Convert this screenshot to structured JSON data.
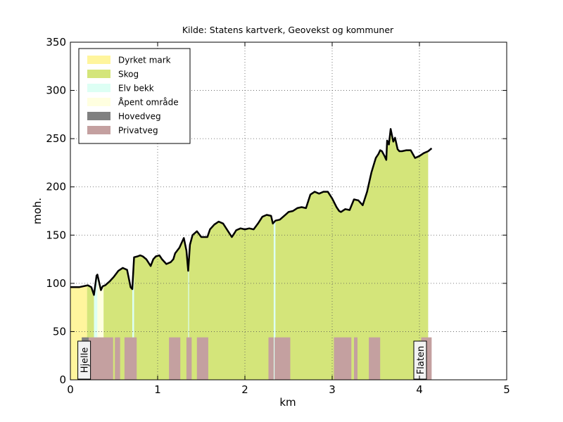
{
  "chart_data": {
    "type": "area",
    "title": "Kilde: Statens kartverk, Geovekst og kommuner",
    "xlabel": "km",
    "ylabel": "moh.",
    "xlim": [
      0,
      5
    ],
    "ylim": [
      0,
      350
    ],
    "x_ticks": [
      "0",
      "1",
      "2",
      "3",
      "4",
      "5"
    ],
    "y_ticks": [
      "0",
      "50",
      "100",
      "150",
      "200",
      "250",
      "300",
      "350"
    ],
    "grid": true,
    "legend_position": "top-left",
    "legend": [
      {
        "name": "Dyrket mark",
        "color": "#fff59d"
      },
      {
        "name": "Skog",
        "color": "#d4e57a"
      },
      {
        "name": "Elv bekk",
        "color": "#ddfff4"
      },
      {
        "name": "Åpent område",
        "color": "#ffffe0"
      },
      {
        "name": "Hovedveg",
        "color": "#808080"
      },
      {
        "name": "Privatveg",
        "color": "#c4a0a0"
      }
    ],
    "place_labels": [
      {
        "label": "Hjelle",
        "x": 0.15
      },
      {
        "label": "Flaten",
        "x": 4.0
      }
    ],
    "elevation_profile": {
      "x": [
        0,
        0.1,
        0.2,
        0.24,
        0.27,
        0.3,
        0.31,
        0.35,
        0.37,
        0.4,
        0.45,
        0.5,
        0.55,
        0.6,
        0.65,
        0.69,
        0.71,
        0.73,
        0.77,
        0.8,
        0.83,
        0.87,
        0.92,
        0.95,
        0.98,
        1.02,
        1.05,
        1.1,
        1.15,
        1.18,
        1.2,
        1.25,
        1.3,
        1.33,
        1.35,
        1.37,
        1.4,
        1.45,
        1.5,
        1.53,
        1.57,
        1.6,
        1.65,
        1.7,
        1.75,
        1.8,
        1.85,
        1.88,
        1.9,
        1.95,
        2.0,
        2.05,
        2.1,
        2.15,
        2.2,
        2.25,
        2.3,
        2.32,
        2.35,
        2.4,
        2.45,
        2.5,
        2.55,
        2.6,
        2.65,
        2.7,
        2.75,
        2.8,
        2.85,
        2.9,
        2.95,
        3.0,
        3.05,
        3.08,
        3.1,
        3.15,
        3.2,
        3.25,
        3.3,
        3.33,
        3.35,
        3.4,
        3.45,
        3.48,
        3.5,
        3.53,
        3.55,
        3.57,
        3.6,
        3.62,
        3.63,
        3.65,
        3.67,
        3.7,
        3.72,
        3.75,
        3.77,
        3.8,
        3.85,
        3.9,
        3.95,
        4.0,
        4.05,
        4.1,
        4.14
      ],
      "y": [
        96,
        96,
        98,
        96,
        88,
        108,
        109,
        93,
        97,
        98,
        102,
        107,
        113,
        116,
        114,
        96,
        94,
        127,
        128,
        129,
        128,
        125,
        118,
        125,
        128,
        129,
        125,
        120,
        122,
        125,
        131,
        137,
        147,
        134,
        113,
        140,
        150,
        154,
        148,
        148,
        148,
        156,
        161,
        164,
        162,
        155,
        148,
        152,
        155,
        157,
        156,
        157,
        156,
        162,
        169,
        171,
        170,
        162,
        165,
        166,
        170,
        174,
        175,
        178,
        179,
        178,
        192,
        195,
        193,
        195,
        195,
        188,
        179,
        175,
        174,
        177,
        176,
        187,
        186,
        183,
        181,
        195,
        215,
        224,
        230,
        234,
        238,
        237,
        232,
        228,
        248,
        244,
        260,
        247,
        251,
        239,
        237,
        237,
        238,
        238,
        230,
        232,
        235,
        237,
        240
      ],
      "line_color": "#000000"
    },
    "landcover_bands": [
      {
        "class": "Dyrket mark",
        "x_start": 0.0,
        "x_end": 0.19
      },
      {
        "class": "Elv bekk",
        "x_start": 0.27,
        "x_end": 0.31
      },
      {
        "class": "Åpent område",
        "x_start": 0.31,
        "x_end": 0.38
      },
      {
        "class": "Skog",
        "x_start": 0.19,
        "x_end": 0.27
      },
      {
        "class": "Skog",
        "x_start": 0.38,
        "x_end": 4.1
      },
      {
        "class": "Elv bekk",
        "x_start": 0.71,
        "x_end": 0.73
      },
      {
        "class": "Elv bekk",
        "x_start": 1.35,
        "x_end": 1.36
      },
      {
        "class": "Elv bekk",
        "x_start": 2.33,
        "x_end": 2.35
      }
    ],
    "road_bands": [
      {
        "class": "Hovedveg",
        "x_start": 0.13,
        "x_end": 0.21
      },
      {
        "class": "Privatveg",
        "x_start": 0.21,
        "x_end": 0.49
      },
      {
        "class": "Privatveg",
        "x_start": 0.51,
        "x_end": 0.57
      },
      {
        "class": "Privatveg",
        "x_start": 0.62,
        "x_end": 0.76
      },
      {
        "class": "Privatveg",
        "x_start": 1.13,
        "x_end": 1.26
      },
      {
        "class": "Privatveg",
        "x_start": 1.33,
        "x_end": 1.39
      },
      {
        "class": "Privatveg",
        "x_start": 1.45,
        "x_end": 1.58
      },
      {
        "class": "Privatveg",
        "x_start": 2.27,
        "x_end": 2.33
      },
      {
        "class": "Privatveg",
        "x_start": 2.34,
        "x_end": 2.52
      },
      {
        "class": "Privatveg",
        "x_start": 3.02,
        "x_end": 3.22
      },
      {
        "class": "Privatveg",
        "x_start": 3.25,
        "x_end": 3.29
      },
      {
        "class": "Privatveg",
        "x_start": 3.42,
        "x_end": 3.55
      },
      {
        "class": "Privatveg",
        "x_start": 4.02,
        "x_end": 4.14
      }
    ],
    "road_band_height": 44
  }
}
